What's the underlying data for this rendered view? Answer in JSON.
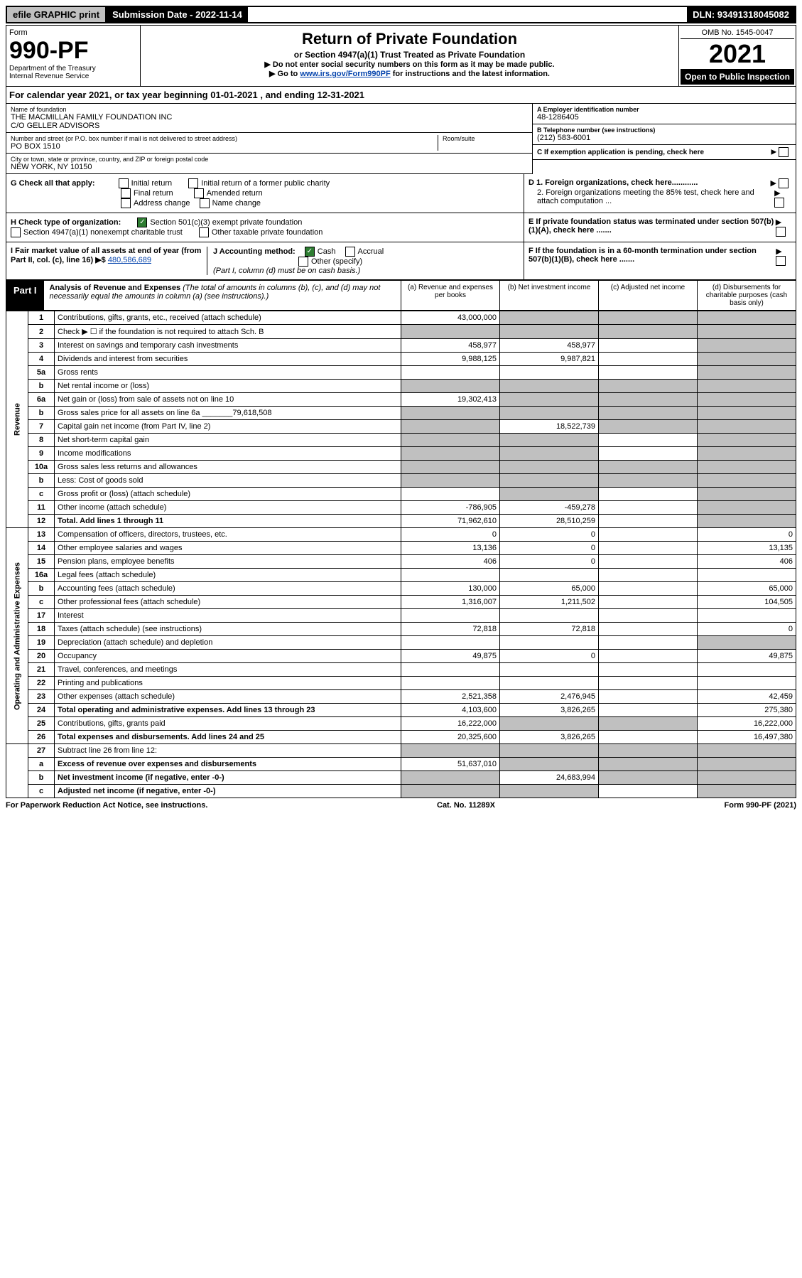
{
  "top_bar": {
    "efile": "efile GRAPHIC print",
    "submission_label": "Submission Date - 2022-11-14",
    "dln": "DLN: 93491318045082"
  },
  "header": {
    "form_label": "Form",
    "form_number": "990-PF",
    "dept": "Department of the Treasury",
    "irs": "Internal Revenue Service",
    "title": "Return of Private Foundation",
    "subtitle": "or Section 4947(a)(1) Trust Treated as Private Foundation",
    "instr1": "▶ Do not enter social security numbers on this form as it may be made public.",
    "instr2_pre": "▶ Go to ",
    "instr2_link": "www.irs.gov/Form990PF",
    "instr2_post": " for instructions and the latest information.",
    "omb": "OMB No. 1545-0047",
    "year": "2021",
    "open": "Open to Public Inspection"
  },
  "calendar": {
    "text_pre": "For calendar year 2021, or tax year beginning ",
    "begin": "01-01-2021",
    "mid": " , and ending ",
    "end": "12-31-2021"
  },
  "entity": {
    "name_label": "Name of foundation",
    "name1": "THE MACMILLAN FAMILY FOUNDATION INC",
    "name2": "C/O GELLER ADVISORS",
    "addr_label": "Number and street (or P.O. box number if mail is not delivered to street address)",
    "addr": "PO BOX 1510",
    "room_label": "Room/suite",
    "city_label": "City or town, state or province, country, and ZIP or foreign postal code",
    "city": "NEW YORK, NY  10150",
    "a_label": "A Employer identification number",
    "a_val": "48-1286405",
    "b_label": "B Telephone number (see instructions)",
    "b_val": "(212) 583-6001",
    "c_label": "C If exemption application is pending, check here"
  },
  "checks": {
    "g_label": "G Check all that apply:",
    "g_initial": "Initial return",
    "g_final": "Final return",
    "g_address": "Address change",
    "g_initial_former": "Initial return of a former public charity",
    "g_amended": "Amended return",
    "g_name": "Name change",
    "h_label": "H Check type of organization:",
    "h_501c3": "Section 501(c)(3) exempt private foundation",
    "h_4947": "Section 4947(a)(1) nonexempt charitable trust",
    "h_other_tax": "Other taxable private foundation",
    "i_label": "I Fair market value of all assets at end of year (from Part II, col. (c), line 16) ▶$",
    "i_val": "480,586,689",
    "j_label": "J Accounting method:",
    "j_cash": "Cash",
    "j_accrual": "Accrual",
    "j_other": "Other (specify)",
    "j_note": "(Part I, column (d) must be on cash basis.)",
    "d1": "D 1. Foreign organizations, check here............",
    "d2": "2. Foreign organizations meeting the 85% test, check here and attach computation ...",
    "e": "E  If private foundation status was terminated under section 507(b)(1)(A), check here .......",
    "f": "F  If the foundation is in a 60-month termination under section 507(b)(1)(B), check here ......."
  },
  "part1": {
    "label": "Part I",
    "title": "Analysis of Revenue and Expenses",
    "title_note": " (The total of amounts in columns (b), (c), and (d) may not necessarily equal the amounts in column (a) (see instructions).)",
    "col_a": "(a) Revenue and expenses per books",
    "col_b": "(b) Net investment income",
    "col_c": "(c) Adjusted net income",
    "col_d": "(d) Disbursements for charitable purposes (cash basis only)"
  },
  "sections": {
    "revenue": "Revenue",
    "expenses": "Operating and Administrative Expenses"
  },
  "rows": [
    {
      "n": "1",
      "desc": "Contributions, gifts, grants, etc., received (attach schedule)",
      "a": "43,000,000",
      "b": "",
      "c": "",
      "d": "",
      "grey_b": true,
      "grey_c": true,
      "grey_d": true
    },
    {
      "n": "2",
      "desc": "Check ▶ ☐ if the foundation is not required to attach Sch. B",
      "a": "",
      "b": "",
      "c": "",
      "d": "",
      "grey_a": true,
      "grey_b": true,
      "grey_c": true,
      "grey_d": true
    },
    {
      "n": "3",
      "desc": "Interest on savings and temporary cash investments",
      "a": "458,977",
      "b": "458,977",
      "c": "",
      "d": "",
      "grey_d": true
    },
    {
      "n": "4",
      "desc": "Dividends and interest from securities",
      "a": "9,988,125",
      "b": "9,987,821",
      "c": "",
      "d": "",
      "grey_d": true
    },
    {
      "n": "5a",
      "desc": "Gross rents",
      "a": "",
      "b": "",
      "c": "",
      "d": "",
      "grey_d": true
    },
    {
      "n": "b",
      "desc": "Net rental income or (loss)",
      "a": "",
      "b": "",
      "c": "",
      "d": "",
      "grey_a": true,
      "grey_b": true,
      "grey_c": true,
      "grey_d": true
    },
    {
      "n": "6a",
      "desc": "Net gain or (loss) from sale of assets not on line 10",
      "a": "19,302,413",
      "b": "",
      "c": "",
      "d": "",
      "grey_b": true,
      "grey_c": true,
      "grey_d": true
    },
    {
      "n": "b",
      "desc": "Gross sales price for all assets on line 6a _______79,618,508",
      "a": "",
      "b": "",
      "c": "",
      "d": "",
      "grey_a": true,
      "grey_b": true,
      "grey_c": true,
      "grey_d": true
    },
    {
      "n": "7",
      "desc": "Capital gain net income (from Part IV, line 2)",
      "a": "",
      "b": "18,522,739",
      "c": "",
      "d": "",
      "grey_a": true,
      "grey_c": true,
      "grey_d": true
    },
    {
      "n": "8",
      "desc": "Net short-term capital gain",
      "a": "",
      "b": "",
      "c": "",
      "d": "",
      "grey_a": true,
      "grey_b": true,
      "grey_d": true
    },
    {
      "n": "9",
      "desc": "Income modifications",
      "a": "",
      "b": "",
      "c": "",
      "d": "",
      "grey_a": true,
      "grey_b": true,
      "grey_d": true
    },
    {
      "n": "10a",
      "desc": "Gross sales less returns and allowances",
      "a": "",
      "b": "",
      "c": "",
      "d": "",
      "grey_a": true,
      "grey_b": true,
      "grey_c": true,
      "grey_d": true
    },
    {
      "n": "b",
      "desc": "Less: Cost of goods sold",
      "a": "",
      "b": "",
      "c": "",
      "d": "",
      "grey_a": true,
      "grey_b": true,
      "grey_c": true,
      "grey_d": true
    },
    {
      "n": "c",
      "desc": "Gross profit or (loss) (attach schedule)",
      "a": "",
      "b": "",
      "c": "",
      "d": "",
      "grey_b": true,
      "grey_d": true
    },
    {
      "n": "11",
      "desc": "Other income (attach schedule)",
      "a": "-786,905",
      "b": "-459,278",
      "c": "",
      "d": "",
      "grey_d": true
    },
    {
      "n": "12",
      "desc": "Total. Add lines 1 through 11",
      "a": "71,962,610",
      "b": "28,510,259",
      "c": "",
      "d": "",
      "bold": true,
      "grey_d": true
    }
  ],
  "exp_rows": [
    {
      "n": "13",
      "desc": "Compensation of officers, directors, trustees, etc.",
      "a": "0",
      "b": "0",
      "c": "",
      "d": "0"
    },
    {
      "n": "14",
      "desc": "Other employee salaries and wages",
      "a": "13,136",
      "b": "0",
      "c": "",
      "d": "13,135"
    },
    {
      "n": "15",
      "desc": "Pension plans, employee benefits",
      "a": "406",
      "b": "0",
      "c": "",
      "d": "406"
    },
    {
      "n": "16a",
      "desc": "Legal fees (attach schedule)",
      "a": "",
      "b": "",
      "c": "",
      "d": ""
    },
    {
      "n": "b",
      "desc": "Accounting fees (attach schedule)",
      "a": "130,000",
      "b": "65,000",
      "c": "",
      "d": "65,000"
    },
    {
      "n": "c",
      "desc": "Other professional fees (attach schedule)",
      "a": "1,316,007",
      "b": "1,211,502",
      "c": "",
      "d": "104,505"
    },
    {
      "n": "17",
      "desc": "Interest",
      "a": "",
      "b": "",
      "c": "",
      "d": ""
    },
    {
      "n": "18",
      "desc": "Taxes (attach schedule) (see instructions)",
      "a": "72,818",
      "b": "72,818",
      "c": "",
      "d": "0"
    },
    {
      "n": "19",
      "desc": "Depreciation (attach schedule) and depletion",
      "a": "",
      "b": "",
      "c": "",
      "d": "",
      "grey_d": true
    },
    {
      "n": "20",
      "desc": "Occupancy",
      "a": "49,875",
      "b": "0",
      "c": "",
      "d": "49,875"
    },
    {
      "n": "21",
      "desc": "Travel, conferences, and meetings",
      "a": "",
      "b": "",
      "c": "",
      "d": ""
    },
    {
      "n": "22",
      "desc": "Printing and publications",
      "a": "",
      "b": "",
      "c": "",
      "d": ""
    },
    {
      "n": "23",
      "desc": "Other expenses (attach schedule)",
      "a": "2,521,358",
      "b": "2,476,945",
      "c": "",
      "d": "42,459"
    },
    {
      "n": "24",
      "desc": "Total operating and administrative expenses. Add lines 13 through 23",
      "a": "4,103,600",
      "b": "3,826,265",
      "c": "",
      "d": "275,380",
      "bold": true
    },
    {
      "n": "25",
      "desc": "Contributions, gifts, grants paid",
      "a": "16,222,000",
      "b": "",
      "c": "",
      "d": "16,222,000",
      "grey_b": true,
      "grey_c": true
    },
    {
      "n": "26",
      "desc": "Total expenses and disbursements. Add lines 24 and 25",
      "a": "20,325,600",
      "b": "3,826,265",
      "c": "",
      "d": "16,497,380",
      "bold": true
    }
  ],
  "bottom_rows": [
    {
      "n": "27",
      "desc": "Subtract line 26 from line 12:",
      "a": "",
      "b": "",
      "c": "",
      "d": "",
      "grey_a": true,
      "grey_b": true,
      "grey_c": true,
      "grey_d": true
    },
    {
      "n": "a",
      "desc": "Excess of revenue over expenses and disbursements",
      "a": "51,637,010",
      "b": "",
      "c": "",
      "d": "",
      "bold": true,
      "grey_b": true,
      "grey_c": true,
      "grey_d": true
    },
    {
      "n": "b",
      "desc": "Net investment income (if negative, enter -0-)",
      "a": "",
      "b": "24,683,994",
      "c": "",
      "d": "",
      "bold": true,
      "grey_a": true,
      "grey_c": true,
      "grey_d": true
    },
    {
      "n": "c",
      "desc": "Adjusted net income (if negative, enter -0-)",
      "a": "",
      "b": "",
      "c": "",
      "d": "",
      "bold": true,
      "grey_a": true,
      "grey_b": true,
      "grey_d": true
    }
  ],
  "footer": {
    "left": "For Paperwork Reduction Act Notice, see instructions.",
    "center": "Cat. No. 11289X",
    "right": "Form 990-PF (2021)"
  }
}
